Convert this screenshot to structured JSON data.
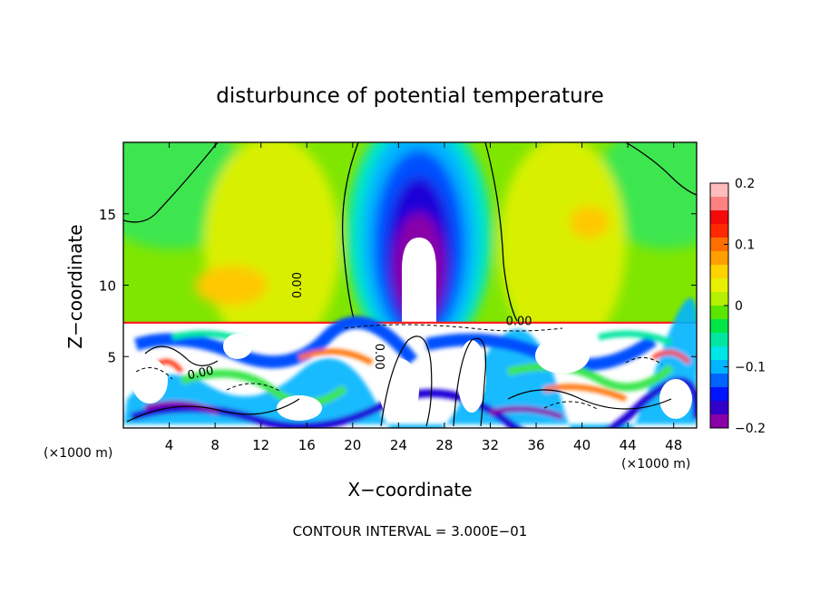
{
  "chart_data": {
    "type": "heatmap",
    "title": "disturbunce of potential temperature",
    "xlabel": "X−coordinate",
    "ylabel": "Z−coordinate",
    "x_unit_left": "(×1000 m)",
    "x_unit_right": "(×1000 m)",
    "xlim": [
      0,
      50
    ],
    "ylim": [
      0,
      20
    ],
    "x_ticks": [
      4,
      8,
      12,
      16,
      20,
      24,
      28,
      32,
      36,
      40,
      44,
      48
    ],
    "y_ticks": [
      5,
      10,
      15
    ],
    "colorbar": {
      "range": [
        -0.2,
        0.2
      ],
      "tick_values": [
        0.2,
        0.1,
        0,
        -0.1,
        -0.2
      ],
      "tick_labels": [
        "0.2",
        "0.1",
        "0",
        "−0.1",
        "−0.2"
      ],
      "colors": [
        "#8a00a8",
        "#3200c8",
        "#0014ff",
        "#0064ff",
        "#00b4ff",
        "#00e6e6",
        "#00e6a0",
        "#00e646",
        "#5ae600",
        "#b4f000",
        "#e6f000",
        "#ffd200",
        "#ffa000",
        "#ff6e00",
        "#ff2800",
        "#f50a0a",
        "#ff8080",
        "#ffbcbc"
      ]
    },
    "contour_labels": [
      {
        "text": "0.00",
        "x": 15.5,
        "y": 10.0,
        "rotate": -90
      },
      {
        "text": "0.00",
        "x": 34.5,
        "y": 7.2,
        "rotate": 0
      },
      {
        "text": "0.00",
        "x": 6.8,
        "y": 3.6,
        "rotate": -12
      },
      {
        "text": "0.00",
        "x": 22.0,
        "y": 5.0,
        "rotate": 90
      }
    ],
    "footer": "CONTOUR INTERVAL = 3.000E−01"
  }
}
